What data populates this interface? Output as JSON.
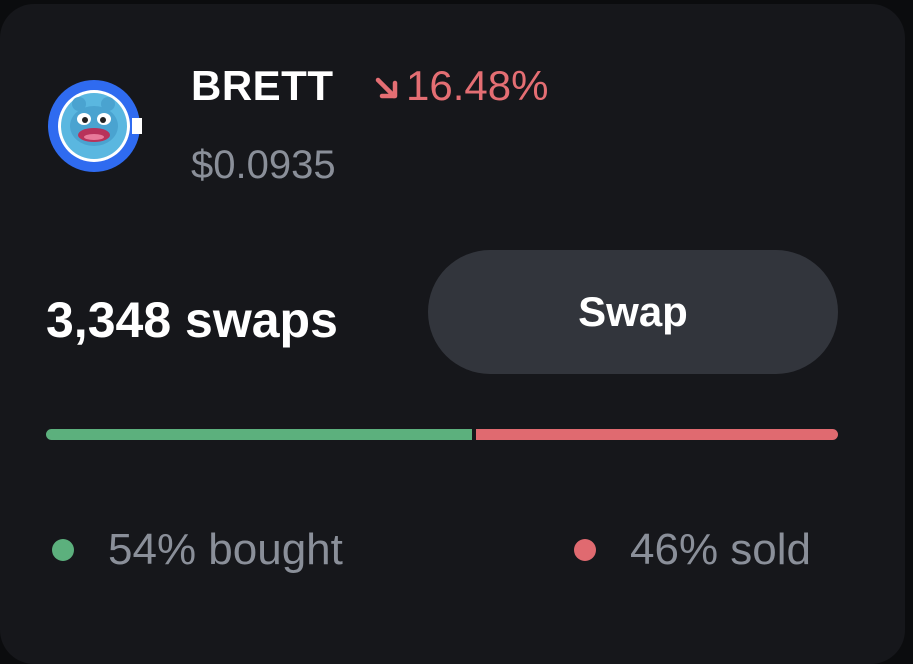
{
  "token": {
    "name": "BRETT",
    "change": "16.48%",
    "change_direction": "down",
    "price": "$0.0935",
    "avatar_icon": "brett-pepe-avatar-icon"
  },
  "activity": {
    "swaps_label": "3,348 swaps",
    "swap_button": "Swap"
  },
  "distribution": {
    "bought_pct": 54,
    "sold_pct": 46,
    "bought_label": "54% bought",
    "sold_label": "46% sold"
  },
  "colors": {
    "card_bg": "#16171b",
    "negative": "#e46e73",
    "buy_bar": "#5cb07d",
    "sell_bar": "#e06a70",
    "muted_text": "#8a8f99",
    "button_bg": "#32353c"
  }
}
